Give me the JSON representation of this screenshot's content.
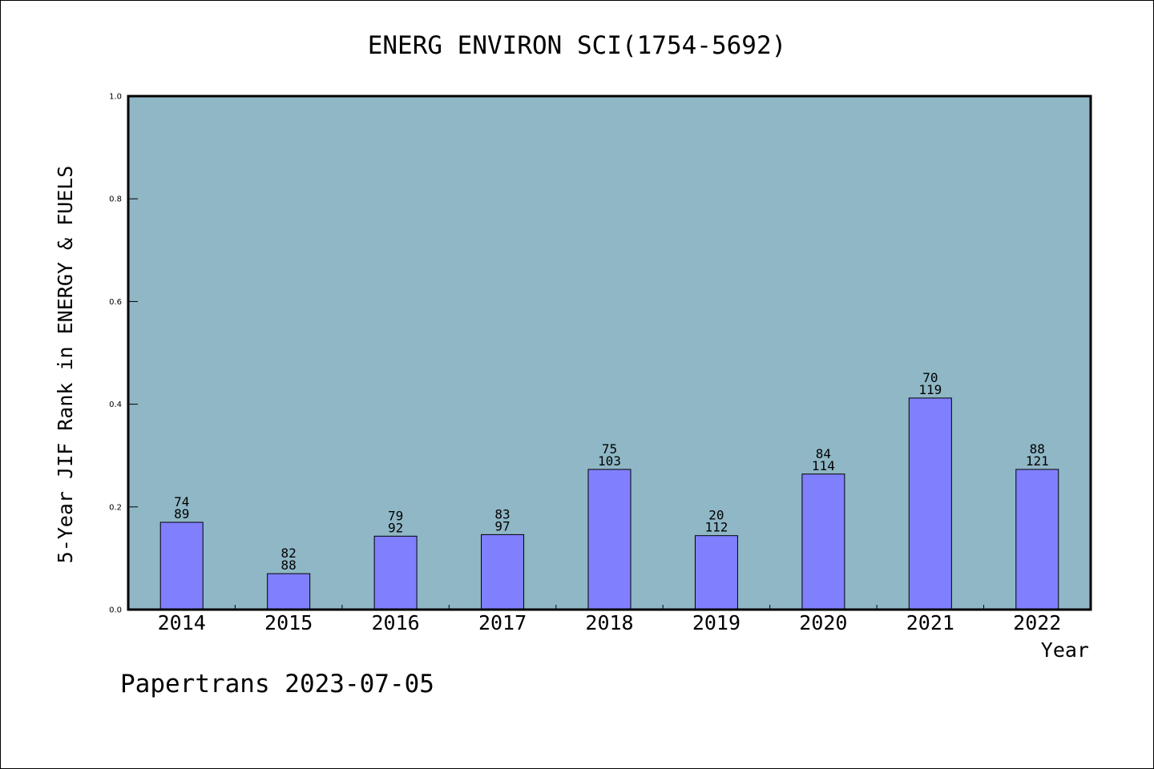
{
  "chart_data": {
    "type": "bar",
    "title": "ENERG ENVIRON SCI(1754-5692)",
    "xlabel": "Year",
    "ylabel": "5-Year JIF Rank in ENERGY & FUELS",
    "ylim": [
      0,
      1.0
    ],
    "yticks": [
      "0.0",
      "0.2",
      "0.4",
      "0.6",
      "0.8",
      "1.0"
    ],
    "categories": [
      "2014",
      "2015",
      "2016",
      "2017",
      "2018",
      "2019",
      "2020",
      "2021",
      "2022"
    ],
    "values": [
      0.17,
      0.07,
      0.143,
      0.146,
      0.273,
      0.144,
      0.264,
      0.412,
      0.273
    ],
    "labels_top": [
      "74",
      "82",
      "79",
      "83",
      "75",
      "20",
      "84",
      "70",
      "88"
    ],
    "labels_bottom": [
      "89",
      "88",
      "92",
      "97",
      "103",
      "112",
      "114",
      "119",
      "121"
    ],
    "grid": false,
    "plot_background": "#8fb7c6",
    "bar_color": "#8080ff"
  },
  "footer": "Papertrans 2023-07-05"
}
